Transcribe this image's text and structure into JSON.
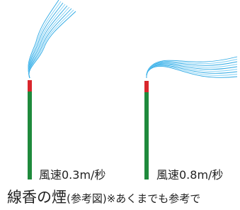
{
  "figures": [
    {
      "label": "風速0.3m/秒"
    },
    {
      "label": "風速0.8m/秒"
    }
  ],
  "caption": {
    "main": "線香の煙",
    "note": "(参考図)※あくまでも参考で"
  }
}
